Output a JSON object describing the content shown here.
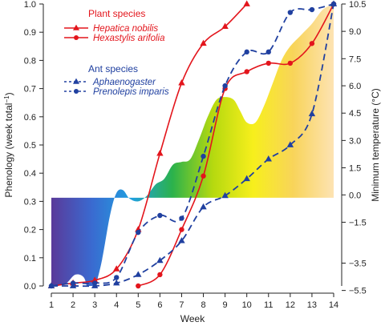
{
  "chart_data": {
    "type": "line",
    "xlabel": "Week",
    "ylabel_main": "Phenology (week total",
    "ylabel_sup": "−1",
    "ylabel_close": ")",
    "y2label": "Minimum temperature (°C)",
    "x_ticks": [
      "1",
      "2",
      "3",
      "4",
      "5",
      "6",
      "7",
      "8",
      "9",
      "10",
      "11",
      "12",
      "13",
      "14"
    ],
    "y_ticks": [
      "0.0",
      "0.1",
      "0.2",
      "0.3",
      "0.4",
      "0.5",
      "0.6",
      "0.7",
      "0.8",
      "0.9",
      "1.0"
    ],
    "y_ticks_values": [
      0,
      0.1,
      0.2,
      0.3,
      0.4,
      0.5,
      0.6,
      0.7,
      0.8,
      0.9,
      1.0
    ],
    "y2_ticks": [
      "10.5",
      "9.0",
      "7.5",
      "6.0",
      "4.5",
      "3.0",
      "1.5",
      "0.0",
      "−1.5",
      "−3.5",
      "−5.5"
    ],
    "y2_ticks_values": [
      1.0,
      0.903,
      0.806,
      0.71,
      0.613,
      0.516,
      0.419,
      0.323,
      0.226,
      0.081,
      -0.016
    ],
    "xlim": [
      1,
      14
    ],
    "ylim": [
      0,
      1.0
    ],
    "legend": {
      "plant_header": "Plant species",
      "ant_header": "Ant species"
    },
    "series": [
      {
        "name": "Hepatica nobilis",
        "group": "plant",
        "color": "#e3151c",
        "marker": "triangle",
        "dash": false,
        "x": [
          1,
          2,
          3,
          4,
          5,
          6,
          7,
          8,
          9,
          10
        ],
        "y": [
          0,
          0.01,
          0.02,
          0.06,
          0.2,
          0.47,
          0.72,
          0.86,
          0.92,
          1.0
        ]
      },
      {
        "name": "Hexastylis arifolia",
        "group": "plant",
        "color": "#e3151c",
        "marker": "circle",
        "dash": false,
        "x": [
          5,
          6,
          7,
          8,
          9,
          10,
          11,
          12,
          13,
          14
        ],
        "y": [
          0,
          0.04,
          0.2,
          0.39,
          0.7,
          0.76,
          0.79,
          0.79,
          0.86,
          1.0
        ]
      },
      {
        "name": "Aphaenogaster",
        "group": "ant",
        "color": "#2040a0",
        "marker": "triangle",
        "dash": true,
        "x": [
          1,
          2,
          3,
          4,
          5,
          6,
          7,
          8,
          9,
          10,
          11,
          12,
          13,
          14
        ],
        "y": [
          0,
          0,
          0,
          0.01,
          0.04,
          0.09,
          0.16,
          0.28,
          0.32,
          0.38,
          0.45,
          0.5,
          0.61,
          1.0
        ]
      },
      {
        "name": "Prenolepis imparis",
        "group": "ant",
        "color": "#2040a0",
        "marker": "circle",
        "dash": true,
        "x": [
          1,
          2,
          3,
          4,
          5,
          6,
          7,
          8,
          9,
          10,
          11,
          12,
          13,
          14
        ],
        "y": [
          0,
          0.01,
          0.01,
          0.03,
          0.19,
          0.25,
          0.24,
          0.46,
          0.71,
          0.83,
          0.83,
          0.97,
          0.98,
          1.0
        ]
      }
    ],
    "temperature_area": {
      "baseline": 0.313,
      "x": [
        1,
        1.3,
        1.7,
        2.1,
        2.5,
        2.7,
        2.9,
        3.3,
        3.7,
        4.0,
        4.3,
        4.6,
        5.0,
        5.4,
        5.8,
        6.2,
        6.6,
        7.0,
        7.4,
        7.8,
        8.2,
        8.6,
        9.0,
        9.4,
        9.7,
        10.0,
        10.4,
        10.8,
        11.2,
        11.6,
        12.0,
        12.5,
        13.0,
        13.5,
        14.0
      ],
      "y": [
        0,
        0.0,
        0.01,
        0.04,
        0.03,
        -0.02,
        -0.03,
        0.08,
        0.25,
        0.33,
        0.34,
        0.31,
        0.3,
        0.32,
        0.36,
        0.38,
        0.43,
        0.44,
        0.45,
        0.52,
        0.6,
        0.66,
        0.67,
        0.66,
        0.62,
        0.58,
        0.58,
        0.64,
        0.72,
        0.8,
        0.85,
        0.89,
        0.93,
        0.98,
        1.0
      ],
      "color_stops": [
        "#5a3a9a",
        "#3a6ad0",
        "#20a0e0",
        "#2bb24c",
        "#b5d90f",
        "#f7ef1c",
        "#f8d45a",
        "#fde3b3"
      ]
    }
  }
}
